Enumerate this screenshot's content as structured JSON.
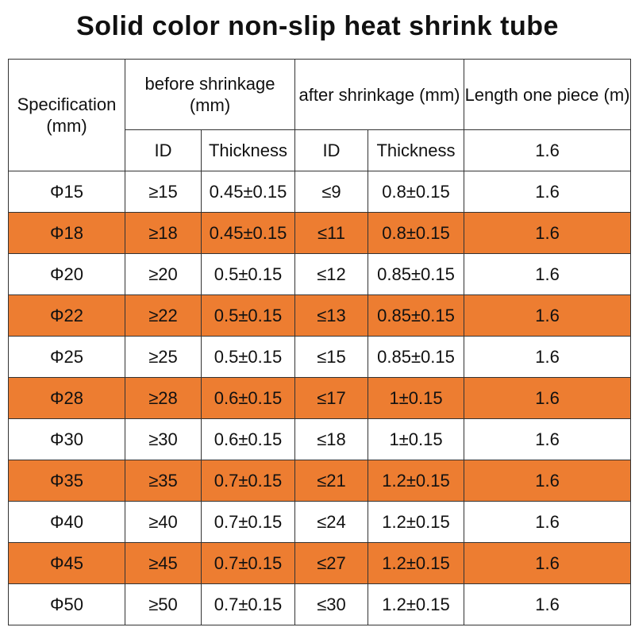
{
  "title": "Solid color non-slip heat shrink tube",
  "header": {
    "spec": "Specification (mm)",
    "before": "before shrinkage (mm)",
    "after": "after shrinkage (mm)",
    "length": "Length one piece (m)",
    "id_label": "ID",
    "thickness_label": "Thickness",
    "id_label_2": "ID",
    "thickness_label_2": "Thickness",
    "length_sub": "1.6"
  },
  "rows": [
    {
      "spec": "Φ15",
      "before_id": "≥15",
      "before_thick": "0.45±0.15",
      "after_id": "≤9",
      "after_thick": "0.8±0.15",
      "length": "1.6"
    },
    {
      "spec": "Φ18",
      "before_id": "≥18",
      "before_thick": "0.45±0.15",
      "after_id": "≤11",
      "after_thick": "0.8±0.15",
      "length": "1.6"
    },
    {
      "spec": "Φ20",
      "before_id": "≥20",
      "before_thick": "0.5±0.15",
      "after_id": "≤12",
      "after_thick": "0.85±0.15",
      "length": "1.6"
    },
    {
      "spec": "Φ22",
      "before_id": "≥22",
      "before_thick": "0.5±0.15",
      "after_id": "≤13",
      "after_thick": "0.85±0.15",
      "length": "1.6"
    },
    {
      "spec": "Φ25",
      "before_id": "≥25",
      "before_thick": "0.5±0.15",
      "after_id": "≤15",
      "after_thick": "0.85±0.15",
      "length": "1.6"
    },
    {
      "spec": "Φ28",
      "before_id": "≥28",
      "before_thick": "0.6±0.15",
      "after_id": "≤17",
      "after_thick": "1±0.15",
      "length": "1.6"
    },
    {
      "spec": "Φ30",
      "before_id": "≥30",
      "before_thick": "0.6±0.15",
      "after_id": "≤18",
      "after_thick": "1±0.15",
      "length": "1.6"
    },
    {
      "spec": "Φ35",
      "before_id": "≥35",
      "before_thick": "0.7±0.15",
      "after_id": "≤21",
      "after_thick": "1.2±0.15",
      "length": "1.6"
    },
    {
      "spec": "Φ40",
      "before_id": "≥40",
      "before_thick": "0.7±0.15",
      "after_id": "≤24",
      "after_thick": "1.2±0.15",
      "length": "1.6"
    },
    {
      "spec": "Φ45",
      "before_id": "≥45",
      "before_thick": "0.7±0.15",
      "after_id": "≤27",
      "after_thick": "1.2±0.15",
      "length": "1.6"
    },
    {
      "spec": "Φ50",
      "before_id": "≥50",
      "before_thick": "0.7±0.15",
      "after_id": "≤30",
      "after_thick": "1.2±0.15",
      "length": "1.6"
    }
  ],
  "colors": {
    "highlight": "#ED7D31",
    "plain": "#FFFFFF"
  }
}
